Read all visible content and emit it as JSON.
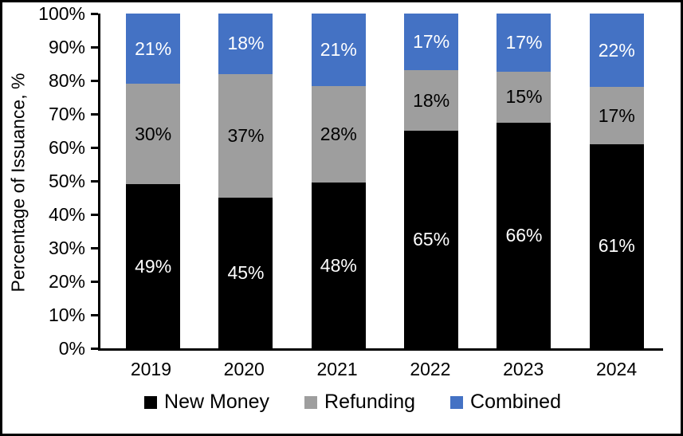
{
  "frame": {
    "background_color": "#ffffff",
    "border_color": "#000000"
  },
  "chart_data": {
    "type": "bar",
    "stacked": true,
    "percent_stacked": true,
    "title": "",
    "xlabel": "",
    "ylabel": "Percentage of Issuance, %",
    "categories": [
      "2019",
      "2020",
      "2021",
      "2022",
      "2023",
      "2024"
    ],
    "series": [
      {
        "name": "New Money",
        "color": "#000000",
        "label_color": "#ffffff",
        "values": [
          49,
          45,
          48,
          65,
          66,
          61
        ]
      },
      {
        "name": "Refunding",
        "color": "#9e9e9e",
        "label_color": "#000000",
        "values": [
          30,
          37,
          28,
          18,
          15,
          17
        ]
      },
      {
        "name": "Combined",
        "color": "#4472c4",
        "label_color": "#ffffff",
        "values": [
          21,
          18,
          21,
          17,
          17,
          22
        ]
      }
    ],
    "value_suffix": "%",
    "ylim": [
      0,
      100
    ],
    "yticks": [
      {
        "label": "0%",
        "value": 0
      },
      {
        "label": "10%",
        "value": 10
      },
      {
        "label": "20%",
        "value": 20
      },
      {
        "label": "30%",
        "value": 30
      },
      {
        "label": "40%",
        "value": 40
      },
      {
        "label": "50%",
        "value": 50
      },
      {
        "label": "60%",
        "value": 60
      },
      {
        "label": "70%",
        "value": 70
      },
      {
        "label": "80%",
        "value": 80
      },
      {
        "label": "90%",
        "value": 90
      },
      {
        "label": "100%",
        "value": 100
      }
    ],
    "grid": false,
    "legend_position": "bottom",
    "legend": [
      "New Money",
      "Refunding",
      "Combined"
    ]
  }
}
